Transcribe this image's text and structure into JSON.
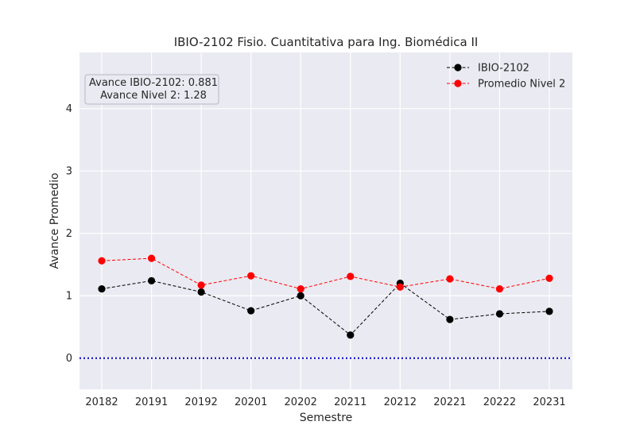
{
  "chart_data": {
    "type": "line",
    "title": "IBIO-2102 Fisio. Cuantitativa para Ing. Biomédica II",
    "xlabel": "Semestre",
    "ylabel": "Avance Promedio",
    "categories": [
      "20182",
      "20191",
      "20192",
      "20201",
      "20202",
      "20211",
      "20212",
      "20221",
      "20222",
      "20231"
    ],
    "ylim": [
      -0.5,
      4.9
    ],
    "yticks": [
      0,
      1,
      2,
      3,
      4
    ],
    "grid": true,
    "legend_position": "top-right",
    "series": [
      {
        "name": "IBIO-2102",
        "color": "#000000",
        "line_style": "dashed",
        "marker": "circle",
        "values": [
          1.11,
          1.24,
          1.06,
          0.76,
          1.0,
          0.37,
          1.2,
          0.62,
          0.71,
          0.75
        ]
      },
      {
        "name": "Promedio Nivel 2",
        "color": "#ff0000",
        "line_style": "dashed",
        "marker": "circle",
        "values": [
          1.56,
          1.6,
          1.17,
          1.32,
          1.11,
          1.31,
          1.14,
          1.27,
          1.11,
          1.28
        ]
      }
    ],
    "reference_line": {
      "y": 0,
      "color": "#0000cc",
      "line_style": "dotted"
    },
    "annotation": {
      "lines": [
        "Avance IBIO-2102: 0.881",
        "Avance Nivel 2: 1.28"
      ]
    },
    "colors": {
      "plot_background": "#eaeaf2",
      "grid": "#ffffff"
    }
  }
}
